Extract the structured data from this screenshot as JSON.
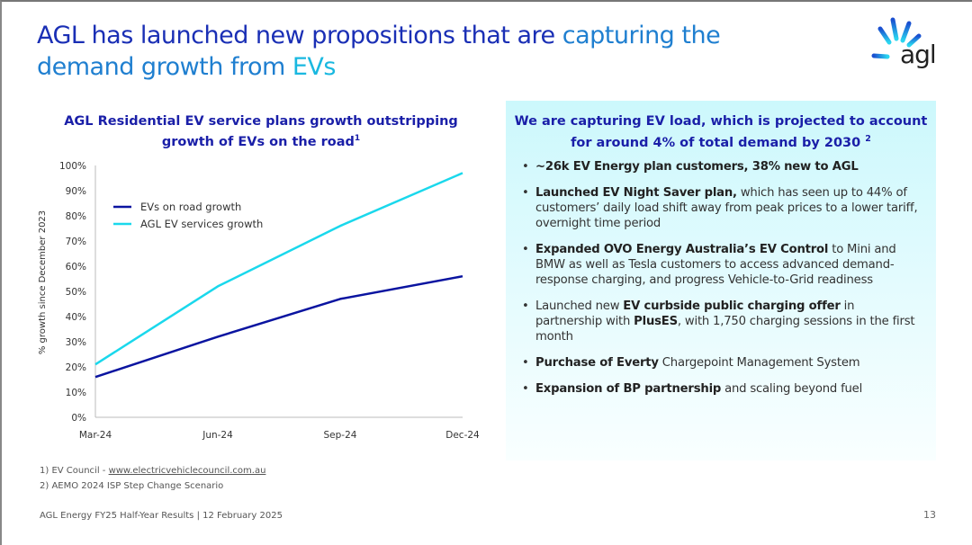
{
  "header": {
    "title_part1": "AGL has launched new propositions that are ",
    "title_part2": "capturing the",
    "title_part3_line2a": "demand growth from ",
    "title_part3_line2b": "EVs",
    "logo_text": "agl"
  },
  "colors": {
    "title_dark": "#1a2fb5",
    "title_mid": "#1f7fd0",
    "title_light": "#19b8e0",
    "series_evs": "#0a14a0",
    "series_agl": "#1ad8ec",
    "panel_bg": "#ccf8fc"
  },
  "chart_data": {
    "type": "line",
    "title": "AGL Residential EV service plans growth outstripping growth of EVs on the road",
    "title_footnote": "1",
    "xlabel": "",
    "ylabel": "% growth since December 2023",
    "x": [
      "Mar-24",
      "Jun-24",
      "Sep-24",
      "Dec-24"
    ],
    "ylim": [
      0,
      100
    ],
    "yticks": [
      "0%",
      "10%",
      "20%",
      "30%",
      "40%",
      "50%",
      "60%",
      "70%",
      "80%",
      "90%",
      "100%"
    ],
    "grid": false,
    "legend_position": "top-left",
    "series": [
      {
        "name": "EVs on road growth",
        "values": [
          16,
          32,
          47,
          56
        ]
      },
      {
        "name": "AGL EV services growth",
        "values": [
          21,
          52,
          76,
          97
        ]
      }
    ]
  },
  "panel": {
    "title": "We are capturing EV load, which is projected to account for around 4% of total demand by 2030",
    "title_footnote": "2",
    "bullets": [
      {
        "bold": "~26k EV Energy plan customers, 38% new to AGL",
        "rest": ""
      },
      {
        "bold": "Launched EV Night Saver plan,",
        "rest": " which has seen up to 44% of customers’ daily load shift away from peak prices to a lower tariff, overnight time period"
      },
      {
        "bold": "Expanded OVO Energy Australia’s EV Control",
        "rest": " to Mini and BMW as well as Tesla customers to access advanced demand-response charging, and progress Vehicle-to-Grid readiness"
      },
      {
        "pre": "Launched new ",
        "bold": "EV curbside public charging offer",
        "mid": " in partnership with ",
        "bold2": "PlusES",
        "rest": ", with 1,750 charging sessions in the first month"
      },
      {
        "bold": "Purchase of Everty",
        "rest": " Chargepoint Management System"
      },
      {
        "bold": "Expansion of BP partnership",
        "rest": " and scaling beyond fuel"
      }
    ]
  },
  "footnotes": {
    "fn1_prefix": "1) EV Council - ",
    "fn1_link": "www.electricvehiclecouncil.com.au",
    "fn2": "2) AEMO 2024 ISP Step Change Scenario"
  },
  "footer": {
    "text": "AGL Energy FY25 Half-Year Results | 12 February 2025",
    "page_number": "13"
  }
}
